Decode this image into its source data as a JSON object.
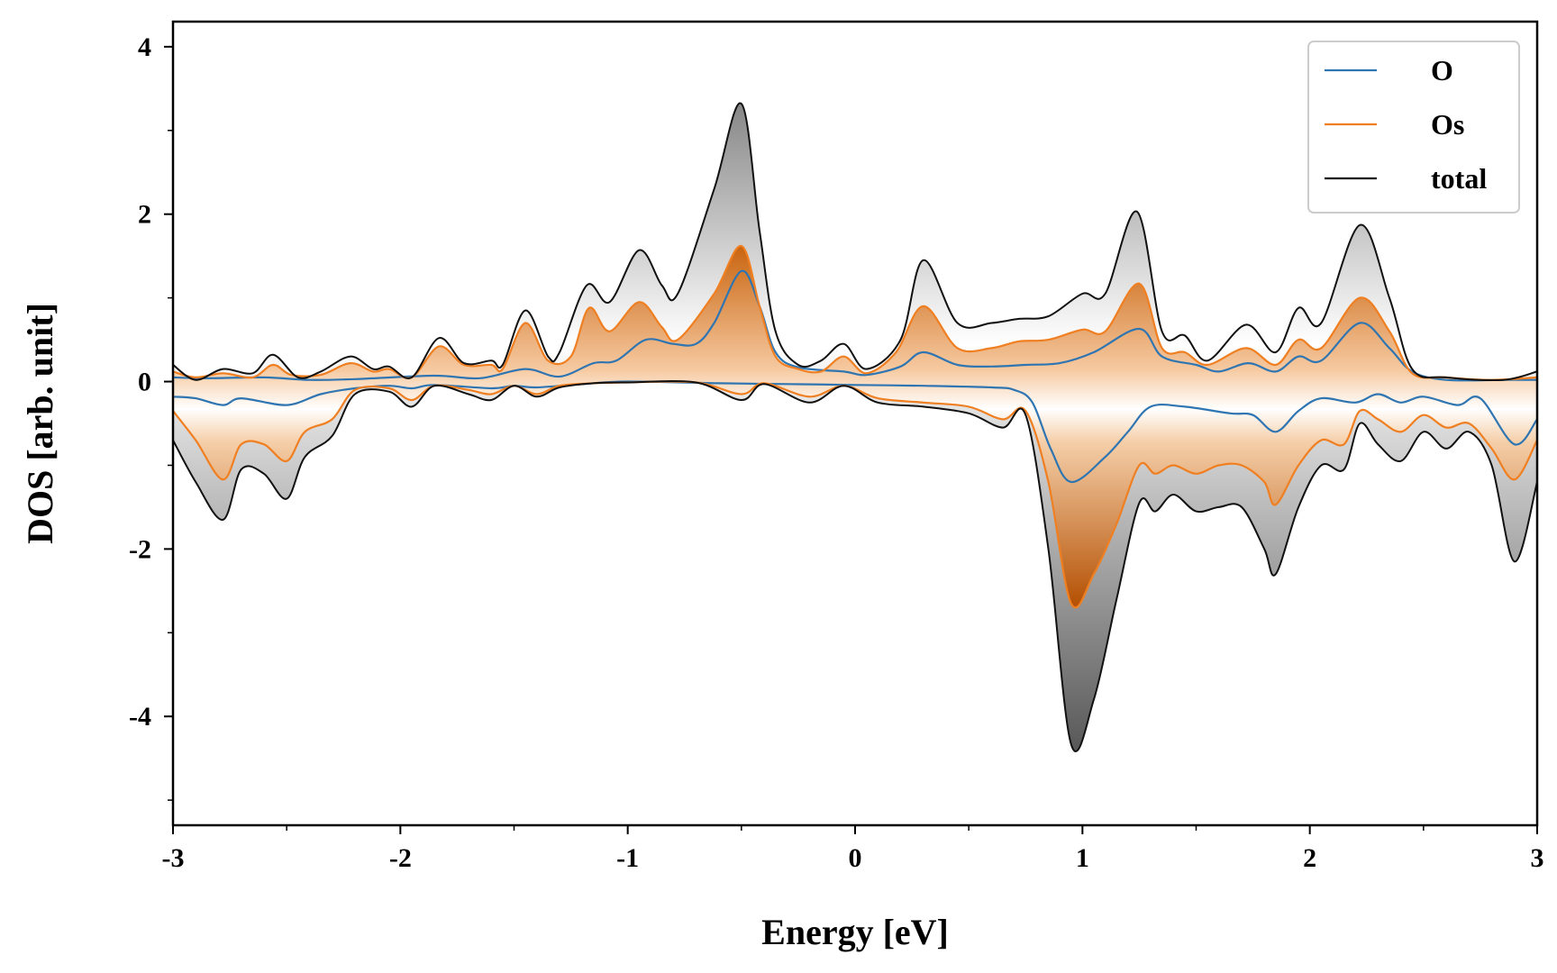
{
  "chart_data": {
    "type": "line",
    "title": "",
    "xlabel": "Energy [eV]",
    "ylabel": "DOS [arb. unit]",
    "xlim": [
      -3,
      3
    ],
    "ylim": [
      -5.3,
      4.3
    ],
    "xticks": [
      -3,
      -2,
      -1,
      0,
      1,
      2,
      3
    ],
    "xtick_labels": [
      "-3",
      "-2",
      "-1",
      "0",
      "1",
      "2",
      "3"
    ],
    "yticks": [
      -4,
      -2,
      0,
      2,
      4
    ],
    "ytick_labels": [
      "-4",
      "-2",
      "0",
      "2",
      "4"
    ],
    "grid": false,
    "legend_position": "top-right",
    "series": [
      {
        "name": "O",
        "color": "#2f75b1",
        "fill": false,
        "up": [
          [
            -3.0,
            0.05
          ],
          [
            -2.85,
            0.04
          ],
          [
            -2.6,
            0.05
          ],
          [
            -2.4,
            0.02
          ],
          [
            -2.2,
            0.03
          ],
          [
            -1.85,
            0.07
          ],
          [
            -1.65,
            0.04
          ],
          [
            -1.45,
            0.15
          ],
          [
            -1.3,
            0.06
          ],
          [
            -1.15,
            0.22
          ],
          [
            -1.05,
            0.25
          ],
          [
            -0.92,
            0.5
          ],
          [
            -0.8,
            0.45
          ],
          [
            -0.7,
            0.45
          ],
          [
            -0.62,
            0.7
          ],
          [
            -0.5,
            1.32
          ],
          [
            -0.42,
            0.9
          ],
          [
            -0.35,
            0.35
          ],
          [
            -0.25,
            0.17
          ],
          [
            -0.05,
            0.12
          ],
          [
            0.05,
            0.08
          ],
          [
            0.2,
            0.18
          ],
          [
            0.3,
            0.35
          ],
          [
            0.45,
            0.2
          ],
          [
            0.6,
            0.18
          ],
          [
            0.75,
            0.2
          ],
          [
            0.9,
            0.22
          ],
          [
            1.05,
            0.35
          ],
          [
            1.25,
            0.63
          ],
          [
            1.35,
            0.3
          ],
          [
            1.5,
            0.2
          ],
          [
            1.6,
            0.12
          ],
          [
            1.73,
            0.22
          ],
          [
            1.85,
            0.12
          ],
          [
            1.95,
            0.3
          ],
          [
            2.05,
            0.25
          ],
          [
            2.22,
            0.7
          ],
          [
            2.35,
            0.4
          ],
          [
            2.45,
            0.12
          ],
          [
            2.6,
            0.02
          ],
          [
            2.85,
            0.02
          ],
          [
            3.0,
            0.02
          ]
        ],
        "down": [
          [
            -3.0,
            -0.18
          ],
          [
            -2.9,
            -0.2
          ],
          [
            -2.78,
            -0.28
          ],
          [
            -2.7,
            -0.2
          ],
          [
            -2.5,
            -0.28
          ],
          [
            -2.35,
            -0.15
          ],
          [
            -2.2,
            -0.08
          ],
          [
            -2.05,
            -0.05
          ],
          [
            -1.95,
            -0.08
          ],
          [
            -1.85,
            -0.04
          ],
          [
            -1.6,
            -0.08
          ],
          [
            -1.5,
            -0.05
          ],
          [
            -1.4,
            -0.07
          ],
          [
            -1.2,
            -0.03
          ],
          [
            -1.0,
            0.0
          ],
          [
            -0.6,
            -0.02
          ],
          [
            -0.3,
            -0.03
          ],
          [
            0.0,
            -0.04
          ],
          [
            0.3,
            -0.05
          ],
          [
            0.6,
            -0.07
          ],
          [
            0.7,
            -0.1
          ],
          [
            0.78,
            -0.25
          ],
          [
            0.86,
            -0.8
          ],
          [
            0.95,
            -1.2
          ],
          [
            1.1,
            -0.9
          ],
          [
            1.2,
            -0.6
          ],
          [
            1.3,
            -0.3
          ],
          [
            1.45,
            -0.3
          ],
          [
            1.65,
            -0.38
          ],
          [
            1.75,
            -0.4
          ],
          [
            1.85,
            -0.6
          ],
          [
            1.95,
            -0.35
          ],
          [
            2.05,
            -0.2
          ],
          [
            2.2,
            -0.25
          ],
          [
            2.3,
            -0.15
          ],
          [
            2.4,
            -0.25
          ],
          [
            2.5,
            -0.18
          ],
          [
            2.65,
            -0.28
          ],
          [
            2.75,
            -0.2
          ],
          [
            2.9,
            -0.75
          ],
          [
            3.0,
            -0.45
          ]
        ]
      },
      {
        "name": "Os",
        "color": "#f07f21",
        "fill": true,
        "up": [
          [
            -3.0,
            0.12
          ],
          [
            -2.9,
            0.05
          ],
          [
            -2.78,
            0.1
          ],
          [
            -2.65,
            0.05
          ],
          [
            -2.56,
            0.2
          ],
          [
            -2.48,
            0.08
          ],
          [
            -2.35,
            0.08
          ],
          [
            -2.22,
            0.22
          ],
          [
            -2.12,
            0.12
          ],
          [
            -2.05,
            0.15
          ],
          [
            -1.95,
            0.05
          ],
          [
            -1.83,
            0.42
          ],
          [
            -1.72,
            0.2
          ],
          [
            -1.6,
            0.2
          ],
          [
            -1.55,
            0.15
          ],
          [
            -1.45,
            0.7
          ],
          [
            -1.35,
            0.25
          ],
          [
            -1.25,
            0.3
          ],
          [
            -1.17,
            0.88
          ],
          [
            -1.08,
            0.6
          ],
          [
            -0.95,
            0.95
          ],
          [
            -0.85,
            0.65
          ],
          [
            -0.78,
            0.5
          ],
          [
            -0.62,
            1.05
          ],
          [
            -0.5,
            1.62
          ],
          [
            -0.42,
            0.9
          ],
          [
            -0.35,
            0.3
          ],
          [
            -0.25,
            0.15
          ],
          [
            -0.15,
            0.12
          ],
          [
            -0.05,
            0.3
          ],
          [
            0.05,
            0.1
          ],
          [
            0.18,
            0.35
          ],
          [
            0.3,
            0.9
          ],
          [
            0.45,
            0.4
          ],
          [
            0.6,
            0.4
          ],
          [
            0.72,
            0.48
          ],
          [
            0.85,
            0.5
          ],
          [
            1.0,
            0.62
          ],
          [
            1.1,
            0.6
          ],
          [
            1.25,
            1.17
          ],
          [
            1.35,
            0.4
          ],
          [
            1.45,
            0.35
          ],
          [
            1.55,
            0.2
          ],
          [
            1.72,
            0.4
          ],
          [
            1.85,
            0.2
          ],
          [
            1.95,
            0.5
          ],
          [
            2.05,
            0.4
          ],
          [
            2.22,
            1.0
          ],
          [
            2.35,
            0.6
          ],
          [
            2.45,
            0.1
          ],
          [
            2.6,
            0.05
          ],
          [
            2.8,
            0.02
          ],
          [
            3.0,
            0.05
          ]
        ],
        "down": [
          [
            -3.0,
            -0.35
          ],
          [
            -2.9,
            -0.7
          ],
          [
            -2.78,
            -1.17
          ],
          [
            -2.7,
            -0.75
          ],
          [
            -2.6,
            -0.75
          ],
          [
            -2.5,
            -0.95
          ],
          [
            -2.42,
            -0.6
          ],
          [
            -2.3,
            -0.45
          ],
          [
            -2.2,
            -0.1
          ],
          [
            -2.05,
            -0.08
          ],
          [
            -1.95,
            -0.22
          ],
          [
            -1.85,
            -0.05
          ],
          [
            -1.7,
            -0.1
          ],
          [
            -1.6,
            -0.15
          ],
          [
            -1.5,
            -0.05
          ],
          [
            -1.4,
            -0.15
          ],
          [
            -1.3,
            -0.05
          ],
          [
            -1.15,
            -0.02
          ],
          [
            -1.0,
            -0.01
          ],
          [
            -0.7,
            -0.01
          ],
          [
            -0.5,
            -0.15
          ],
          [
            -0.4,
            -0.02
          ],
          [
            -0.2,
            -0.18
          ],
          [
            -0.05,
            -0.05
          ],
          [
            0.1,
            -0.2
          ],
          [
            0.3,
            -0.25
          ],
          [
            0.5,
            -0.3
          ],
          [
            0.65,
            -0.45
          ],
          [
            0.75,
            -0.35
          ],
          [
            0.85,
            -1.2
          ],
          [
            0.95,
            -2.65
          ],
          [
            1.05,
            -2.3
          ],
          [
            1.15,
            -1.7
          ],
          [
            1.25,
            -1.0
          ],
          [
            1.32,
            -1.1
          ],
          [
            1.4,
            -1.0
          ],
          [
            1.5,
            -1.1
          ],
          [
            1.6,
            -1.0
          ],
          [
            1.7,
            -1.0
          ],
          [
            1.8,
            -1.2
          ],
          [
            1.85,
            -1.47
          ],
          [
            1.95,
            -1.0
          ],
          [
            2.05,
            -0.7
          ],
          [
            2.15,
            -0.75
          ],
          [
            2.22,
            -0.35
          ],
          [
            2.3,
            -0.45
          ],
          [
            2.4,
            -0.6
          ],
          [
            2.5,
            -0.4
          ],
          [
            2.6,
            -0.55
          ],
          [
            2.7,
            -0.5
          ],
          [
            2.8,
            -0.8
          ],
          [
            2.9,
            -1.17
          ],
          [
            3.0,
            -0.7
          ]
        ]
      },
      {
        "name": "total",
        "color": "#111111",
        "fill": true,
        "up": [
          [
            -3.0,
            0.2
          ],
          [
            -2.9,
            0.02
          ],
          [
            -2.78,
            0.15
          ],
          [
            -2.65,
            0.1
          ],
          [
            -2.56,
            0.32
          ],
          [
            -2.45,
            0.05
          ],
          [
            -2.35,
            0.12
          ],
          [
            -2.22,
            0.3
          ],
          [
            -2.12,
            0.15
          ],
          [
            -2.05,
            0.18
          ],
          [
            -1.95,
            0.05
          ],
          [
            -1.83,
            0.52
          ],
          [
            -1.72,
            0.22
          ],
          [
            -1.6,
            0.25
          ],
          [
            -1.55,
            0.2
          ],
          [
            -1.45,
            0.85
          ],
          [
            -1.35,
            0.3
          ],
          [
            -1.3,
            0.35
          ],
          [
            -1.18,
            1.15
          ],
          [
            -1.08,
            0.95
          ],
          [
            -0.95,
            1.57
          ],
          [
            -0.85,
            1.15
          ],
          [
            -0.78,
            1.05
          ],
          [
            -0.62,
            2.3
          ],
          [
            -0.5,
            3.32
          ],
          [
            -0.42,
            1.8
          ],
          [
            -0.35,
            0.6
          ],
          [
            -0.25,
            0.2
          ],
          [
            -0.15,
            0.25
          ],
          [
            -0.05,
            0.45
          ],
          [
            0.05,
            0.15
          ],
          [
            0.2,
            0.5
          ],
          [
            0.3,
            1.45
          ],
          [
            0.45,
            0.7
          ],
          [
            0.6,
            0.7
          ],
          [
            0.72,
            0.75
          ],
          [
            0.85,
            0.78
          ],
          [
            1.0,
            1.05
          ],
          [
            1.1,
            1.05
          ],
          [
            1.24,
            2.03
          ],
          [
            1.35,
            0.6
          ],
          [
            1.45,
            0.55
          ],
          [
            1.55,
            0.25
          ],
          [
            1.72,
            0.68
          ],
          [
            1.85,
            0.35
          ],
          [
            1.95,
            0.88
          ],
          [
            2.05,
            0.7
          ],
          [
            2.22,
            1.87
          ],
          [
            2.35,
            1.0
          ],
          [
            2.45,
            0.15
          ],
          [
            2.6,
            0.05
          ],
          [
            2.85,
            0.02
          ],
          [
            3.0,
            0.12
          ]
        ],
        "down": [
          [
            -3.0,
            -0.7
          ],
          [
            -2.9,
            -1.2
          ],
          [
            -2.78,
            -1.65
          ],
          [
            -2.7,
            -1.05
          ],
          [
            -2.6,
            -1.1
          ],
          [
            -2.5,
            -1.4
          ],
          [
            -2.42,
            -0.9
          ],
          [
            -2.3,
            -0.65
          ],
          [
            -2.2,
            -0.15
          ],
          [
            -2.05,
            -0.12
          ],
          [
            -1.95,
            -0.3
          ],
          [
            -1.85,
            -0.05
          ],
          [
            -1.7,
            -0.15
          ],
          [
            -1.6,
            -0.22
          ],
          [
            -1.5,
            -0.05
          ],
          [
            -1.4,
            -0.18
          ],
          [
            -1.3,
            -0.07
          ],
          [
            -1.15,
            -0.02
          ],
          [
            -1.0,
            -0.01
          ],
          [
            -0.7,
            -0.01
          ],
          [
            -0.5,
            -0.22
          ],
          [
            -0.4,
            -0.03
          ],
          [
            -0.2,
            -0.25
          ],
          [
            -0.05,
            -0.05
          ],
          [
            0.1,
            -0.25
          ],
          [
            0.3,
            -0.3
          ],
          [
            0.5,
            -0.38
          ],
          [
            0.65,
            -0.55
          ],
          [
            0.75,
            -0.4
          ],
          [
            0.85,
            -2.0
          ],
          [
            0.95,
            -4.33
          ],
          [
            1.05,
            -3.8
          ],
          [
            1.15,
            -2.6
          ],
          [
            1.25,
            -1.45
          ],
          [
            1.32,
            -1.55
          ],
          [
            1.4,
            -1.35
          ],
          [
            1.5,
            -1.55
          ],
          [
            1.6,
            -1.5
          ],
          [
            1.7,
            -1.5
          ],
          [
            1.8,
            -2.0
          ],
          [
            1.85,
            -2.3
          ],
          [
            1.95,
            -1.5
          ],
          [
            2.05,
            -1.0
          ],
          [
            2.15,
            -1.05
          ],
          [
            2.22,
            -0.5
          ],
          [
            2.3,
            -0.75
          ],
          [
            2.4,
            -0.95
          ],
          [
            2.5,
            -0.6
          ],
          [
            2.6,
            -0.8
          ],
          [
            2.7,
            -0.6
          ],
          [
            2.8,
            -1.0
          ],
          [
            2.9,
            -2.15
          ],
          [
            3.0,
            -1.2
          ]
        ]
      }
    ]
  }
}
